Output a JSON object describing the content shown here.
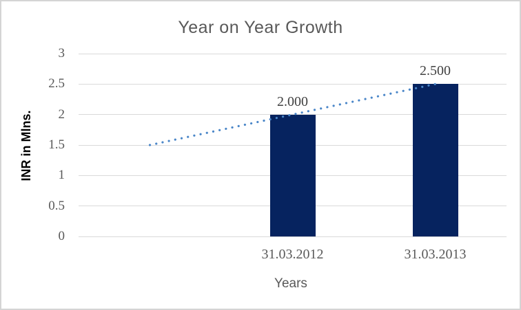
{
  "window": {
    "background": "#ffffff",
    "border_color": "#d4d4d4"
  },
  "chart_data": {
    "type": "bar",
    "title": "Year on Year Growth",
    "xlabel": "Years",
    "ylabel": "INR in Mlns.",
    "categories": [
      "31.03.2012",
      "31.03.2013"
    ],
    "values": [
      2.0,
      2.5
    ],
    "value_labels": [
      "2.000",
      "2.500"
    ],
    "ylim": [
      0,
      3
    ],
    "yticks": [
      0,
      0.5,
      1,
      1.5,
      2,
      2.5,
      3
    ],
    "ytick_labels": [
      "0",
      "0.5",
      "1",
      "1.5",
      "2",
      "2.5",
      "3"
    ],
    "grid": true,
    "legend": "none",
    "slots": 3,
    "category_slots": [
      1,
      2
    ],
    "bar_color": "#06235f",
    "gridline_color": "#d9d9d9",
    "title_color": "#595959",
    "axis_text_color": "#595959",
    "data_label_color": "#3f3f3f",
    "trendline": {
      "style": "dotted",
      "color": "#4a86c8",
      "from_slot": 0,
      "from_value": 1.5,
      "to_slot": 2,
      "to_value": 2.5
    }
  }
}
